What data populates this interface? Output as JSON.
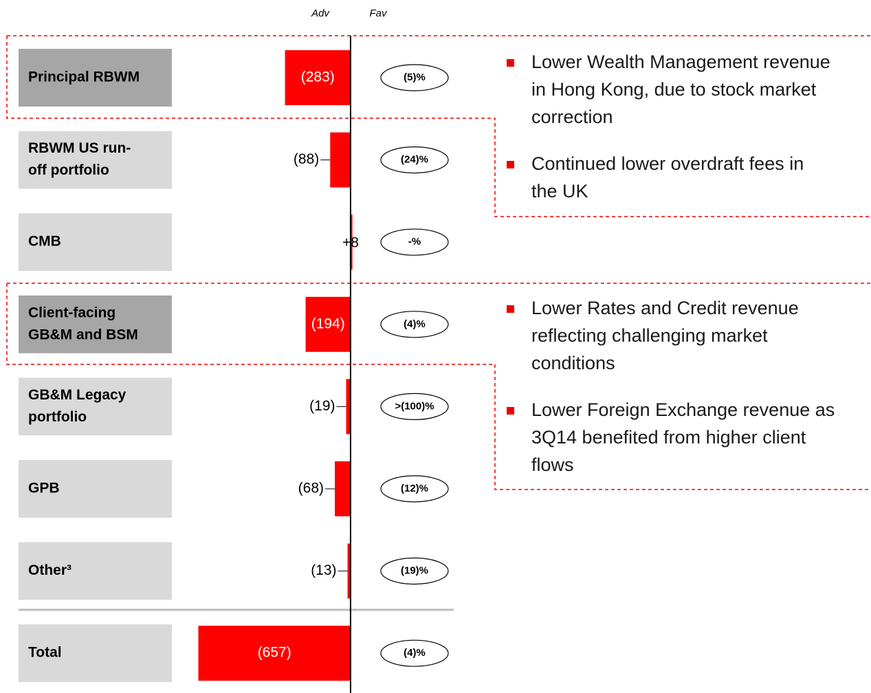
{
  "chart_data": {
    "type": "bar",
    "orientation": "horizontal",
    "x_axis_labels": [
      "Adv",
      "Fav"
    ],
    "categories": [
      [
        "Principal RBWM"
      ],
      [
        "RBWM US run-",
        "off portfolio"
      ],
      [
        "CMB"
      ],
      [
        "Client-facing",
        "GB&M and BSM"
      ],
      [
        "GB&M Legacy",
        "portfolio"
      ],
      [
        "GPB"
      ],
      [
        "Other³"
      ],
      [
        "Total"
      ]
    ],
    "category_colors": [
      "#a6a6a6",
      "#d9d9d9",
      "#d9d9d9",
      "#a6a6a6",
      "#d9d9d9",
      "#d9d9d9",
      "#d9d9d9",
      "#d9d9d9"
    ],
    "values": [
      -283,
      -88,
      8,
      -194,
      -19,
      -68,
      -13,
      -657
    ],
    "value_labels": [
      "(283)",
      "(88)",
      "+8",
      "(194)",
      "(19)",
      "(68)",
      "(13)",
      "(657)"
    ],
    "percent_labels": [
      "(5)%",
      "(24)%",
      "-%",
      "(4)%",
      ">(100)%",
      "(12)%",
      "(19)%",
      "(4)%"
    ],
    "color": "#ff0000",
    "xlim": [
      -700,
      450
    ],
    "annotations": [
      {
        "bullets": [
          [
            "Lower Wealth Management revenue",
            "in Hong Kong, due to stock market",
            "correction"
          ],
          [
            "Continued lower overdraft fees in",
            "the UK"
          ]
        ]
      },
      {
        "bullets": [
          [
            "Lower Rates and Credit revenue",
            "reflecting challenging market",
            "conditions"
          ],
          [
            "Lower Foreign Exchange revenue as",
            "3Q14 benefited from higher client",
            "flows"
          ]
        ]
      }
    ]
  }
}
